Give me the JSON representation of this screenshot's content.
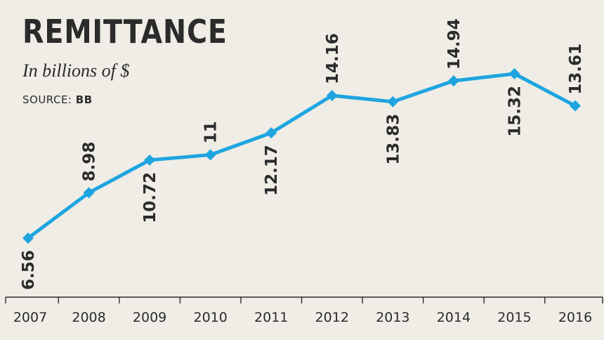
{
  "chart_data": {
    "type": "line",
    "title": "REMITTANCE",
    "subtitle": "In billions of $",
    "source_label": "SOURCE:",
    "source_value": "BB",
    "categories": [
      "2007",
      "2008",
      "2009",
      "2010",
      "2011",
      "2012",
      "2013",
      "2014",
      "2015",
      "2016"
    ],
    "series": [
      {
        "values": [
          6.56,
          8.98,
          10.72,
          11,
          12.17,
          14.16,
          13.83,
          14.94,
          15.32,
          13.61
        ],
        "labels": [
          "6.56",
          "8.98",
          "10.72",
          "11",
          "12.17",
          "14.16",
          "13.83",
          "14.94",
          "15.32",
          "13.61"
        ]
      }
    ],
    "ylim": [
      6.56,
      15.32
    ],
    "grid": false,
    "colors": {
      "line": "#1ea5e0",
      "text": "#2b2b2b",
      "background": "#efede6"
    }
  }
}
